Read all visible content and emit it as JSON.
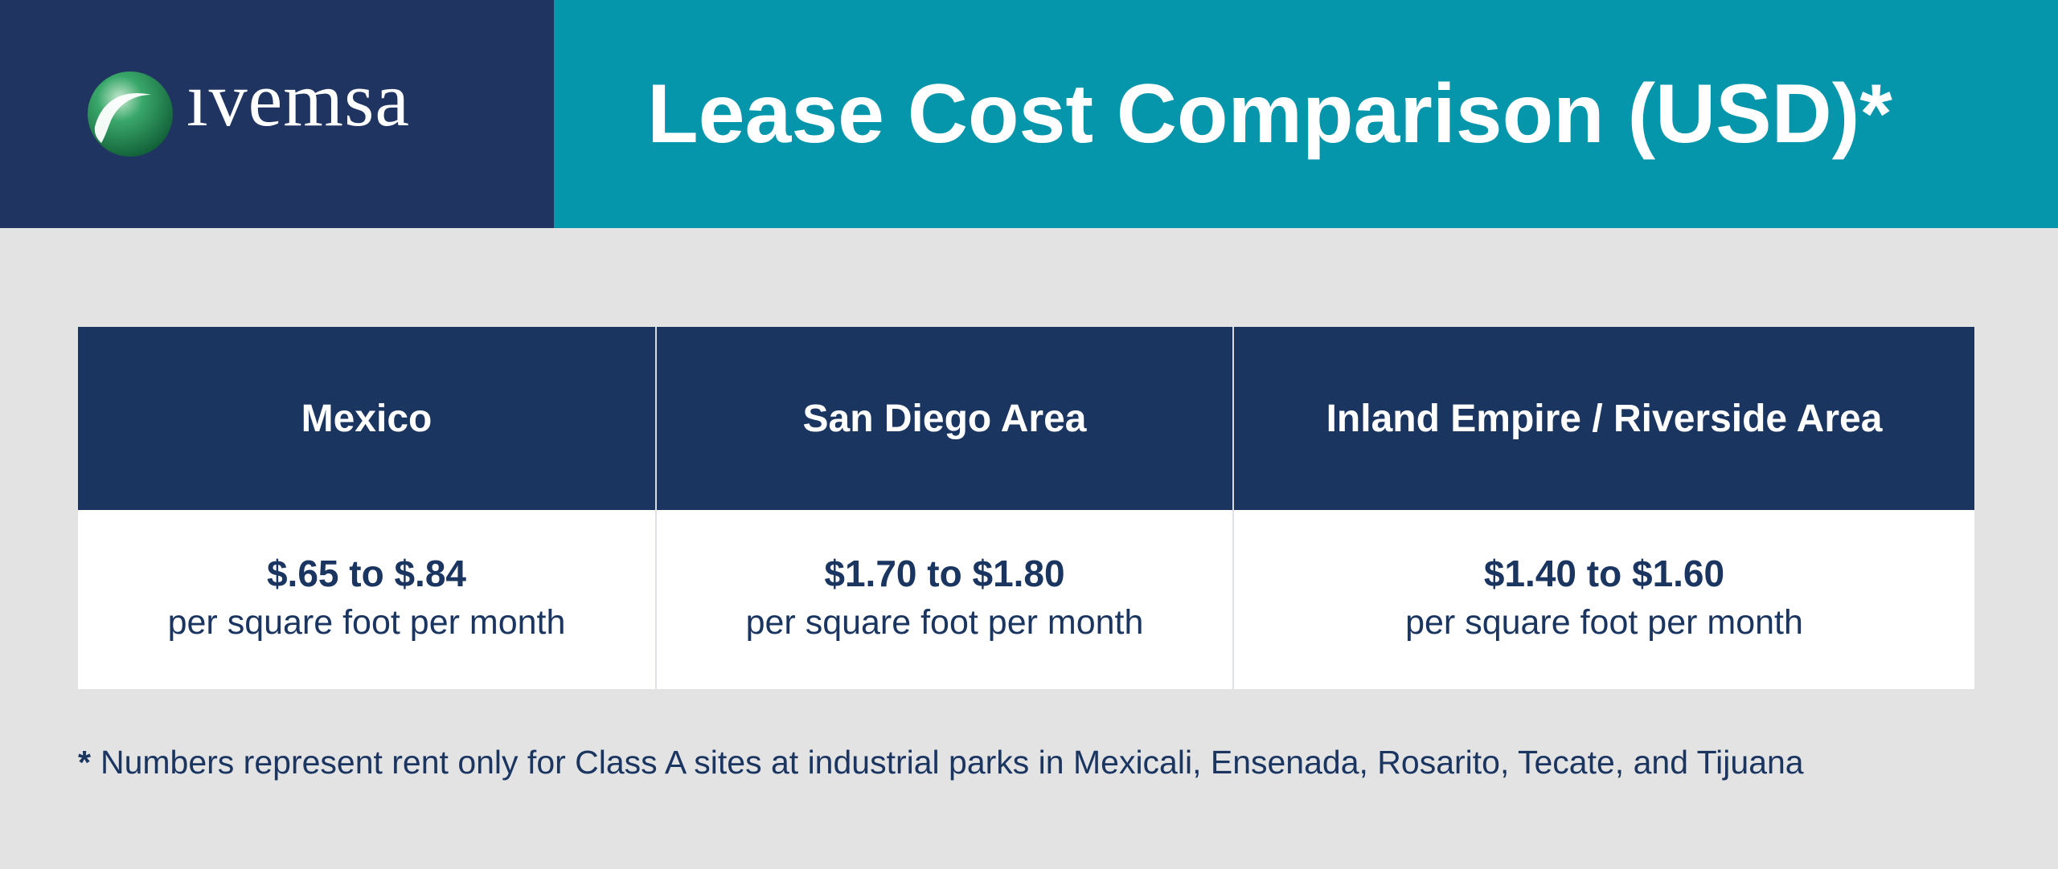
{
  "brand": {
    "name": "ıvemsa",
    "colors": {
      "navy": "#1f3460",
      "teal": "#0596ac",
      "background": "#e3e3e3",
      "logo_green": "#1f8a4c"
    }
  },
  "header": {
    "title": "Lease Cost Comparison (USD)*"
  },
  "table": {
    "columns": [
      {
        "heading": "Mexico",
        "price": "$.65 to $.84",
        "unit": "per square foot per month"
      },
      {
        "heading": "San Diego Area",
        "price": "$1.70 to $1.80",
        "unit": "per square foot per month"
      },
      {
        "heading": "Inland Empire / Riverside Area",
        "price": "$1.40 to $1.60",
        "unit": "per square foot per month"
      }
    ]
  },
  "footnote": {
    "marker": "*",
    "text": "Numbers represent rent only for Class A sites at industrial parks in Mexicali, Ensenada, Rosarito, Tecate, and Tijuana"
  }
}
